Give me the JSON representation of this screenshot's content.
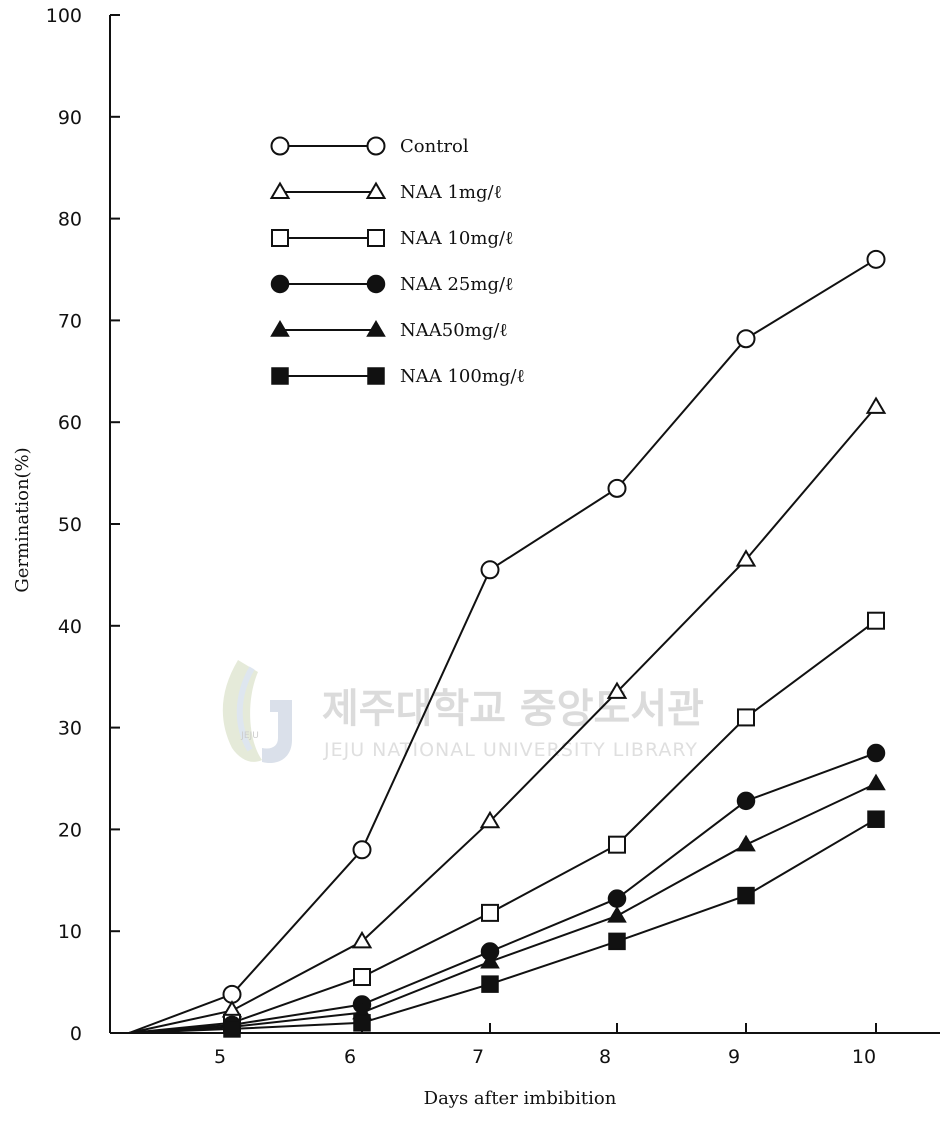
{
  "chart_data": {
    "type": "line",
    "xlabel": "Days after imbibition",
    "ylabel": "Germination(%)",
    "xlim": [
      4.2,
      10.5
    ],
    "ylim": [
      0,
      100
    ],
    "xticks": [
      5,
      6,
      7,
      8,
      9,
      10
    ],
    "yticks": [
      0,
      10,
      20,
      30,
      40,
      50,
      60,
      70,
      80,
      90,
      100
    ],
    "grid": false,
    "legend_position": "top-left",
    "x": [
      4.2,
      5,
      6,
      7,
      8,
      9,
      10
    ],
    "series": [
      {
        "name": "Control",
        "marker": "circle-open",
        "values": [
          0,
          3.8,
          18,
          45.5,
          53.5,
          68.2,
          76
        ]
      },
      {
        "name": "NAA 1mg/ℓ",
        "marker": "triangle-open",
        "values": [
          0,
          2.2,
          9,
          20.8,
          33.5,
          46.5,
          61.5
        ]
      },
      {
        "name": "NAA 10mg/ℓ",
        "marker": "square-open",
        "values": [
          0,
          1,
          5.5,
          11.8,
          18.5,
          31,
          40.5
        ]
      },
      {
        "name": "NAA 25mg/ℓ",
        "marker": "circle-filled",
        "values": [
          0,
          0.8,
          2.8,
          8,
          13.2,
          22.8,
          27.5
        ]
      },
      {
        "name": "NAA50mg/ℓ",
        "marker": "triangle-filled",
        "values": [
          0,
          0.6,
          2,
          7,
          11.5,
          18.5,
          24.5
        ]
      },
      {
        "name": "NAA 100mg/ℓ",
        "marker": "square-filled",
        "values": [
          0,
          0.4,
          1,
          4.8,
          9,
          13.5,
          21
        ]
      }
    ]
  },
  "watermark": {
    "korean": "제주대학교 중앙도서관",
    "english": "JEJU NATIONAL UNIVERSITY LIBRARY",
    "logo_text": "JEJU"
  }
}
